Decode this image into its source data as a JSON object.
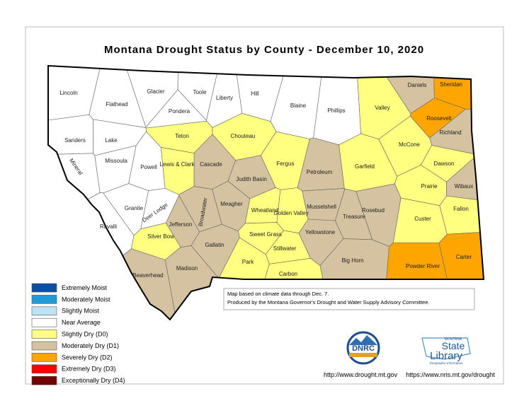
{
  "title": "Montana Drought Status by County - December 10, 2020",
  "legend": [
    {
      "label": "Extremely Moist",
      "color": "#0b4fa3"
    },
    {
      "label": "Moderately Moist",
      "color": "#1e9bd7"
    },
    {
      "label": "Slightly Moist",
      "color": "#bde3f5"
    },
    {
      "label": "Near Average",
      "color": "#ffffff"
    },
    {
      "label": "Slightly Dry (D0)",
      "color": "#ffff80"
    },
    {
      "label": "Moderately Dry (D1)",
      "color": "#d4c2a0"
    },
    {
      "label": "Severely Dry (D2)",
      "color": "#ffa500"
    },
    {
      "label": "Extremely Dry (D3)",
      "color": "#ff0000"
    },
    {
      "label": "Exceptionally Dry (D4)",
      "color": "#730000"
    }
  ],
  "counties": [
    {
      "name": "Lincoln",
      "status": "Near Average"
    },
    {
      "name": "Flathead",
      "status": "Near Average"
    },
    {
      "name": "Glacier",
      "status": "Near Average"
    },
    {
      "name": "Toole",
      "status": "Near Average"
    },
    {
      "name": "Liberty",
      "status": "Near Average"
    },
    {
      "name": "Hill",
      "status": "Near Average"
    },
    {
      "name": "Blaine",
      "status": "Near Average"
    },
    {
      "name": "Phillips",
      "status": "Near Average"
    },
    {
      "name": "Valley",
      "status": "Slightly Dry (D0)"
    },
    {
      "name": "Daniels",
      "status": "Moderately Dry (D1)"
    },
    {
      "name": "Sheridan",
      "status": "Severely Dry (D2)"
    },
    {
      "name": "Roosevelt",
      "status": "Severely Dry (D2)"
    },
    {
      "name": "Richland",
      "status": "Moderately Dry (D1)"
    },
    {
      "name": "Pondera",
      "status": "Near Average"
    },
    {
      "name": "Teton",
      "status": "Slightly Dry (D0)"
    },
    {
      "name": "Chouteau",
      "status": "Slightly Dry (D0)"
    },
    {
      "name": "Sanders",
      "status": "Near Average"
    },
    {
      "name": "Lake",
      "status": "Near Average"
    },
    {
      "name": "Cascade",
      "status": "Moderately Dry (D1)"
    },
    {
      "name": "Judith Basin",
      "status": "Moderately Dry (D1)"
    },
    {
      "name": "Fergus",
      "status": "Slightly Dry (D0)"
    },
    {
      "name": "Petroleum",
      "status": "Moderately Dry (D1)"
    },
    {
      "name": "Garfield",
      "status": "Slightly Dry (D0)"
    },
    {
      "name": "McCone",
      "status": "Slightly Dry (D0)"
    },
    {
      "name": "Dawson",
      "status": "Slightly Dry (D0)"
    },
    {
      "name": "Prairie",
      "status": "Slightly Dry (D0)"
    },
    {
      "name": "Wibaux",
      "status": "Moderately Dry (D1)"
    },
    {
      "name": "Mineral",
      "status": "Near Average"
    },
    {
      "name": "Missoula",
      "status": "Near Average"
    },
    {
      "name": "Powell",
      "status": "Near Average"
    },
    {
      "name": "Lewis & Clark",
      "status": "Slightly Dry (D0)"
    },
    {
      "name": "Meagher",
      "status": "Moderately Dry (D1)"
    },
    {
      "name": "Wheatland",
      "status": "Slightly Dry (D0)"
    },
    {
      "name": "Golden Valley",
      "status": "Slightly Dry (D0)"
    },
    {
      "name": "Musselshell",
      "status": "Moderately Dry (D1)"
    },
    {
      "name": "Rosebud",
      "status": "Moderately Dry (D1)"
    },
    {
      "name": "Custer",
      "status": "Slightly Dry (D0)"
    },
    {
      "name": "Fallon",
      "status": "Slightly Dry (D0)"
    },
    {
      "name": "Treasure",
      "status": "Moderately Dry (D1)"
    },
    {
      "name": "Granite",
      "status": "Near Average"
    },
    {
      "name": "Ravalli",
      "status": "Near Average"
    },
    {
      "name": "Jefferson",
      "status": "Moderately Dry (D1)"
    },
    {
      "name": "Broadwater",
      "status": "Moderately Dry (D1)"
    },
    {
      "name": "Deer Lodge",
      "status": "Near Average"
    },
    {
      "name": "Silver Bow",
      "status": "Slightly Dry (D0)"
    },
    {
      "name": "Sweet Grass",
      "status": "Slightly Dry (D0)"
    },
    {
      "name": "Stillwater",
      "status": "Slightly Dry (D0)"
    },
    {
      "name": "Yellowstone",
      "status": "Moderately Dry (D1)"
    },
    {
      "name": "Big Horn",
      "status": "Moderately Dry (D1)"
    },
    {
      "name": "Powder River",
      "status": "Severely Dry (D2)"
    },
    {
      "name": "Carter",
      "status": "Severely Dry (D2)"
    },
    {
      "name": "Gallatin",
      "status": "Moderately Dry (D1)"
    },
    {
      "name": "Park",
      "status": "Slightly Dry (D0)"
    },
    {
      "name": "Carbon",
      "status": "Slightly Dry (D0)"
    },
    {
      "name": "Madison",
      "status": "Moderately Dry (D1)"
    },
    {
      "name": "Beaverhead",
      "status": "Moderately Dry (D1)"
    }
  ],
  "notes": [
    "Map based on climate data through Dec. 7.",
    "Produced by the Montana Governor's Drought and Water Supply Advisory Committee."
  ],
  "logos": {
    "dnrc": "DNRC",
    "library_top": "MONTANA",
    "library_state": "State",
    "library_name": "Library",
    "library_sub": "Geographic Information"
  },
  "links": [
    "http://www.drought.mt.gov",
    "https://www.nris.mt.gov/drought"
  ]
}
